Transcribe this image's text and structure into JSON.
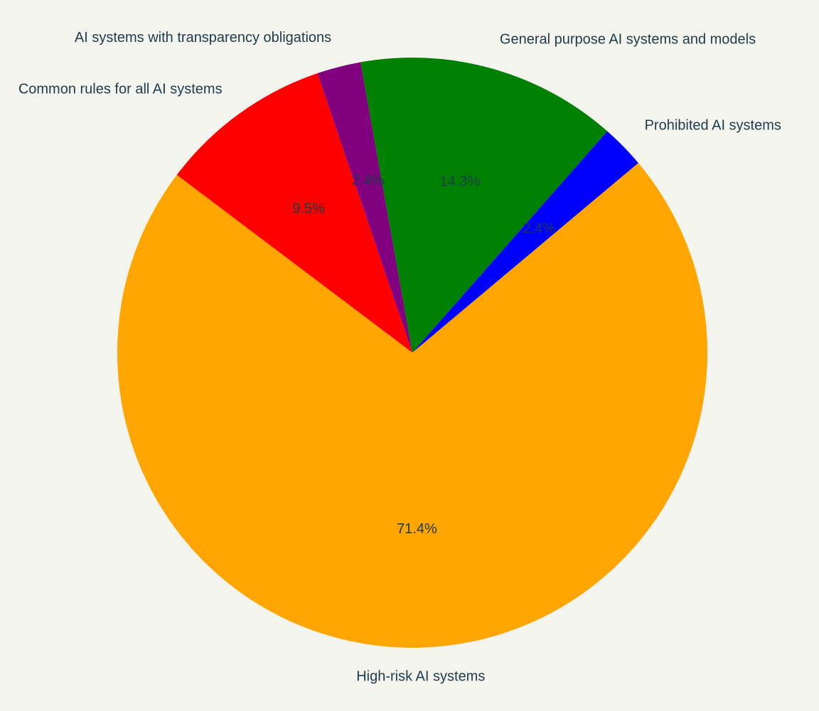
{
  "chart_data": {
    "type": "pie",
    "title": "",
    "start_angle_deg": 90,
    "direction": "counterclockwise",
    "legend": "none",
    "slices": [
      {
        "label": "Prohibited AI systems",
        "value": 2.4,
        "pct_label": "2.4%",
        "color": "#0000ff"
      },
      {
        "label": "General purpose AI systems and models",
        "value": 14.3,
        "pct_label": "14.3%",
        "color": "#008000"
      },
      {
        "label": "AI systems with transparency obligations",
        "value": 2.4,
        "pct_label": "2.4%",
        "color": "#800080"
      },
      {
        "label": "Common rules for all AI systems",
        "value": 9.5,
        "pct_label": "9.5%",
        "color": "#ff0000"
      },
      {
        "label": "High-risk AI systems",
        "value": 71.4,
        "pct_label": "71.4%",
        "color": "#ffa500"
      }
    ]
  }
}
